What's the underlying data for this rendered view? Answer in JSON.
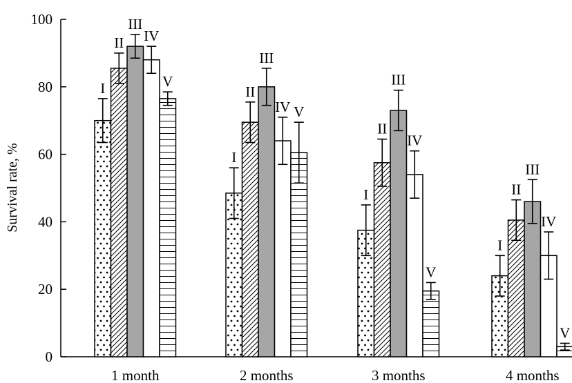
{
  "chart_data": {
    "type": "bar",
    "ylabel": "Survival rate, %",
    "xlabel": "",
    "ylim": [
      0,
      100
    ],
    "yticks": [
      0,
      20,
      40,
      60,
      80,
      100
    ],
    "grid": false,
    "categories": [
      "1 month",
      "2 months",
      "3 months",
      "4 months"
    ],
    "series": [
      {
        "name": "I",
        "pattern": "dots",
        "fill": "#ffffff",
        "values": [
          70,
          48.5,
          37.5,
          24
        ],
        "errors": [
          6.5,
          7.5,
          7.5,
          6
        ]
      },
      {
        "name": "II",
        "pattern": "diagonal",
        "fill": "#ffffff",
        "values": [
          85.5,
          69.5,
          57.5,
          40.5
        ],
        "errors": [
          4.5,
          6,
          7,
          6
        ]
      },
      {
        "name": "III",
        "pattern": "solid",
        "fill": "#a6a6a6",
        "values": [
          92,
          80,
          73,
          46
        ],
        "errors": [
          3.5,
          5.5,
          6,
          6.5
        ]
      },
      {
        "name": "IV",
        "pattern": "none",
        "fill": "#ffffff",
        "values": [
          88,
          64,
          54,
          30
        ],
        "errors": [
          4,
          7,
          7,
          7
        ]
      },
      {
        "name": "V",
        "pattern": "horizontal",
        "fill": "#ffffff",
        "values": [
          76.5,
          60.5,
          19.5,
          3
        ],
        "errors": [
          2,
          9,
          2.5,
          1
        ]
      }
    ]
  }
}
